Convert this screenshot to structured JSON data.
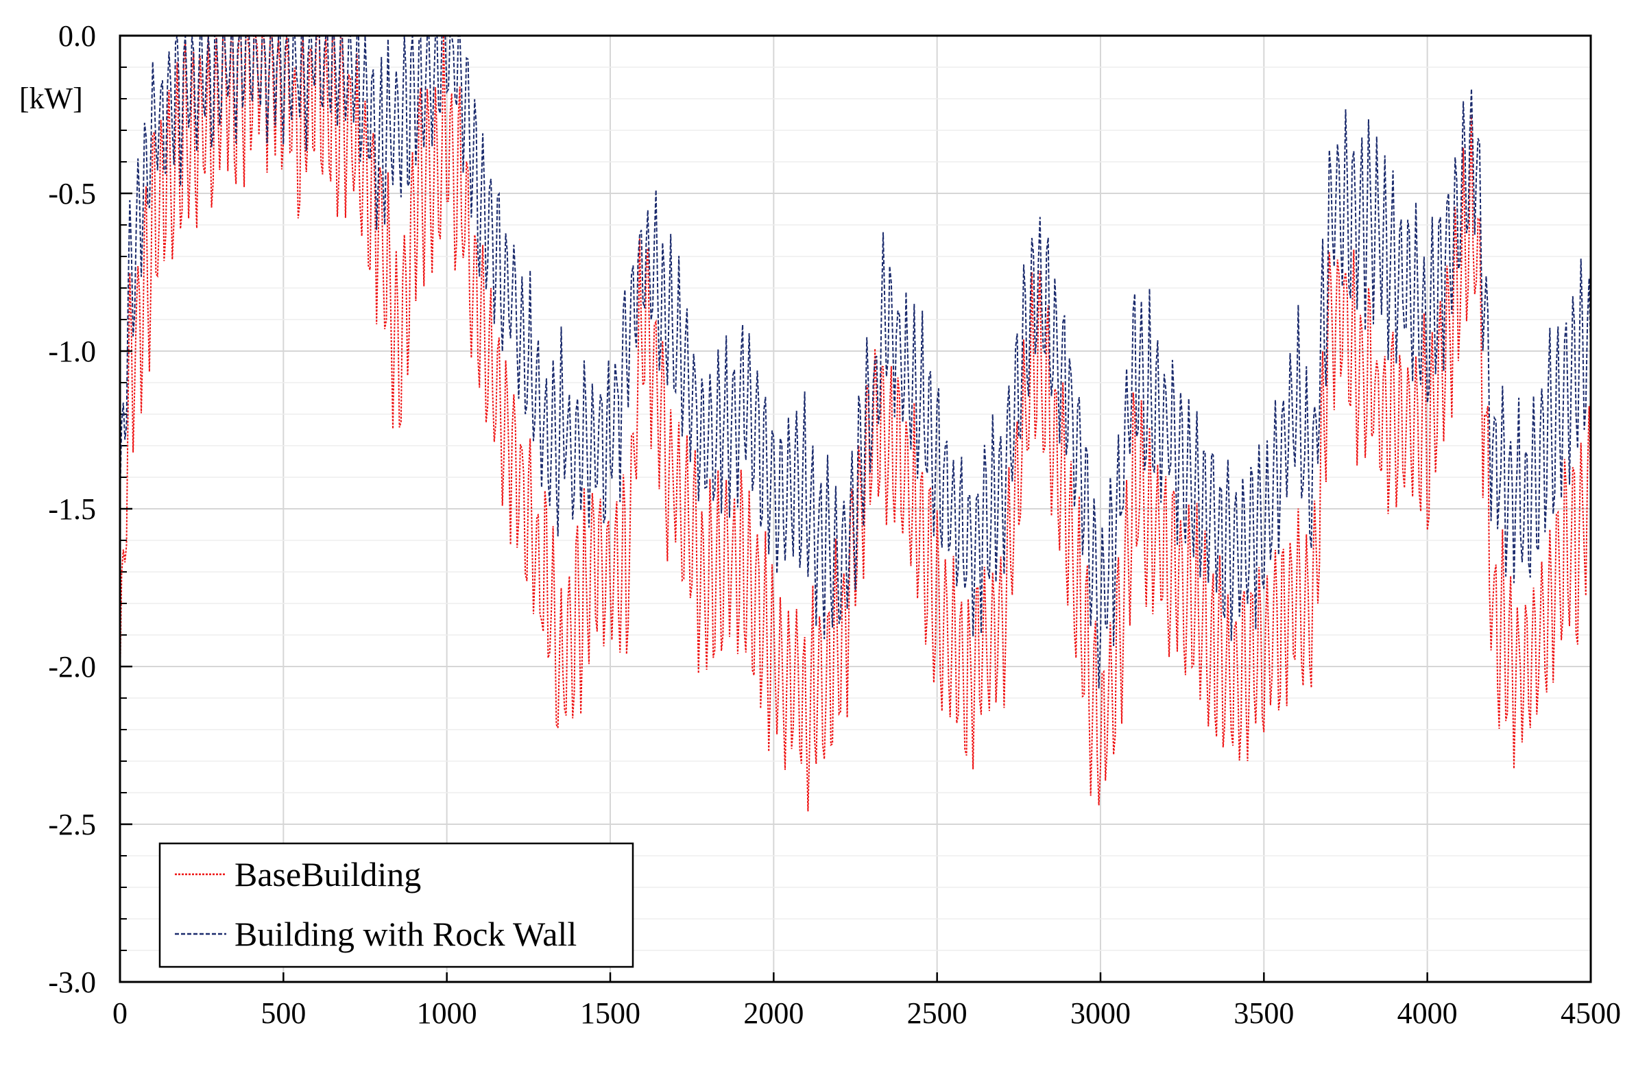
{
  "chart_data": {
    "type": "line",
    "title": "",
    "xlabel": "",
    "ylabel": "[kW]",
    "xlim": [
      0,
      4500
    ],
    "ylim": [
      -3.0,
      0.0
    ],
    "x_ticks": [
      0,
      500,
      1000,
      1500,
      2000,
      2500,
      3000,
      3500,
      4000,
      4500
    ],
    "x_tick_labels": [
      "0",
      "500",
      "1000",
      "1500",
      "2000",
      "2500",
      "3000",
      "3500",
      "4000",
      "4500"
    ],
    "y_ticks": [
      0.0,
      -0.5,
      -1.0,
      -1.5,
      -2.0,
      -2.5,
      -3.0
    ],
    "y_tick_labels": [
      "0.0",
      "-0.5",
      "-1.0",
      "-1.5",
      "-2.0",
      "-2.5",
      "-3.0"
    ],
    "grid": true,
    "legend_position": "bottom-left",
    "series": [
      {
        "name": "BaseBuilding",
        "color": "#ee1111",
        "style": "dotted",
        "baseline": [
          [
            0,
            -2.0
          ],
          [
            30,
            -1.1
          ],
          [
            100,
            -0.6
          ],
          [
            200,
            -0.35
          ],
          [
            300,
            -0.2
          ],
          [
            400,
            -0.1
          ],
          [
            500,
            -0.15
          ],
          [
            550,
            -0.3
          ],
          [
            600,
            -0.1
          ],
          [
            700,
            -0.3
          ],
          [
            800,
            -0.6
          ],
          [
            850,
            -1.1
          ],
          [
            900,
            -0.5
          ],
          [
            1000,
            -0.35
          ],
          [
            1050,
            -0.55
          ],
          [
            1100,
            -0.9
          ],
          [
            1200,
            -1.3
          ],
          [
            1300,
            -1.75
          ],
          [
            1350,
            -2.05
          ],
          [
            1450,
            -1.65
          ],
          [
            1550,
            -1.75
          ],
          [
            1600,
            -0.85
          ],
          [
            1700,
            -1.45
          ],
          [
            1800,
            -1.75
          ],
          [
            1900,
            -1.65
          ],
          [
            2000,
            -1.95
          ],
          [
            2100,
            -2.15
          ],
          [
            2200,
            -1.95
          ],
          [
            2300,
            -1.25
          ],
          [
            2400,
            -1.35
          ],
          [
            2500,
            -1.85
          ],
          [
            2600,
            -2.05
          ],
          [
            2700,
            -1.85
          ],
          [
            2800,
            -0.95
          ],
          [
            2900,
            -1.55
          ],
          [
            3000,
            -2.25
          ],
          [
            3050,
            -1.95
          ],
          [
            3100,
            -1.45
          ],
          [
            3200,
            -1.65
          ],
          [
            3300,
            -1.85
          ],
          [
            3400,
            -2.05
          ],
          [
            3500,
            -1.95
          ],
          [
            3600,
            -1.75
          ],
          [
            3650,
            -1.85
          ],
          [
            3700,
            -0.85
          ],
          [
            3800,
            -1.05
          ],
          [
            3900,
            -1.25
          ],
          [
            4000,
            -1.25
          ],
          [
            4100,
            -0.75
          ],
          [
            4150,
            -0.55
          ],
          [
            4200,
            -1.85
          ],
          [
            4300,
            -2.05
          ],
          [
            4400,
            -1.75
          ],
          [
            4500,
            -1.45
          ]
        ],
        "amplitude": 0.34,
        "samples": 900,
        "period": 24
      },
      {
        "name": "Building with Rock Wall",
        "color": "#1a2a6c",
        "style": "dashed",
        "baseline": [
          [
            0,
            -1.5
          ],
          [
            30,
            -0.8
          ],
          [
            100,
            -0.3
          ],
          [
            200,
            -0.15
          ],
          [
            300,
            -0.05
          ],
          [
            400,
            -0.05
          ],
          [
            500,
            -0.05
          ],
          [
            600,
            -0.05
          ],
          [
            700,
            -0.05
          ],
          [
            800,
            -0.35
          ],
          [
            900,
            -0.2
          ],
          [
            1000,
            -0.05
          ],
          [
            1050,
            -0.15
          ],
          [
            1100,
            -0.55
          ],
          [
            1200,
            -0.85
          ],
          [
            1300,
            -1.25
          ],
          [
            1400,
            -1.3
          ],
          [
            1500,
            -1.3
          ],
          [
            1600,
            -0.7
          ],
          [
            1700,
            -0.95
          ],
          [
            1800,
            -1.3
          ],
          [
            1900,
            -1.15
          ],
          [
            2000,
            -1.45
          ],
          [
            2100,
            -1.45
          ],
          [
            2200,
            -1.7
          ],
          [
            2300,
            -1.2
          ],
          [
            2350,
            -0.85
          ],
          [
            2400,
            -1.05
          ],
          [
            2500,
            -1.35
          ],
          [
            2600,
            -1.65
          ],
          [
            2700,
            -1.45
          ],
          [
            2800,
            -0.8
          ],
          [
            2900,
            -1.1
          ],
          [
            3000,
            -1.85
          ],
          [
            3050,
            -1.55
          ],
          [
            3100,
            -1.05
          ],
          [
            3200,
            -1.25
          ],
          [
            3300,
            -1.45
          ],
          [
            3400,
            -1.65
          ],
          [
            3500,
            -1.55
          ],
          [
            3600,
            -1.15
          ],
          [
            3650,
            -1.45
          ],
          [
            3700,
            -0.6
          ],
          [
            3800,
            -0.55
          ],
          [
            3900,
            -0.75
          ],
          [
            4000,
            -0.95
          ],
          [
            4100,
            -0.55
          ],
          [
            4150,
            -0.35
          ],
          [
            4200,
            -1.35
          ],
          [
            4300,
            -1.5
          ],
          [
            4400,
            -1.2
          ],
          [
            4500,
            -0.95
          ]
        ],
        "amplitude": 0.3,
        "samples": 900,
        "period": 24
      }
    ]
  }
}
